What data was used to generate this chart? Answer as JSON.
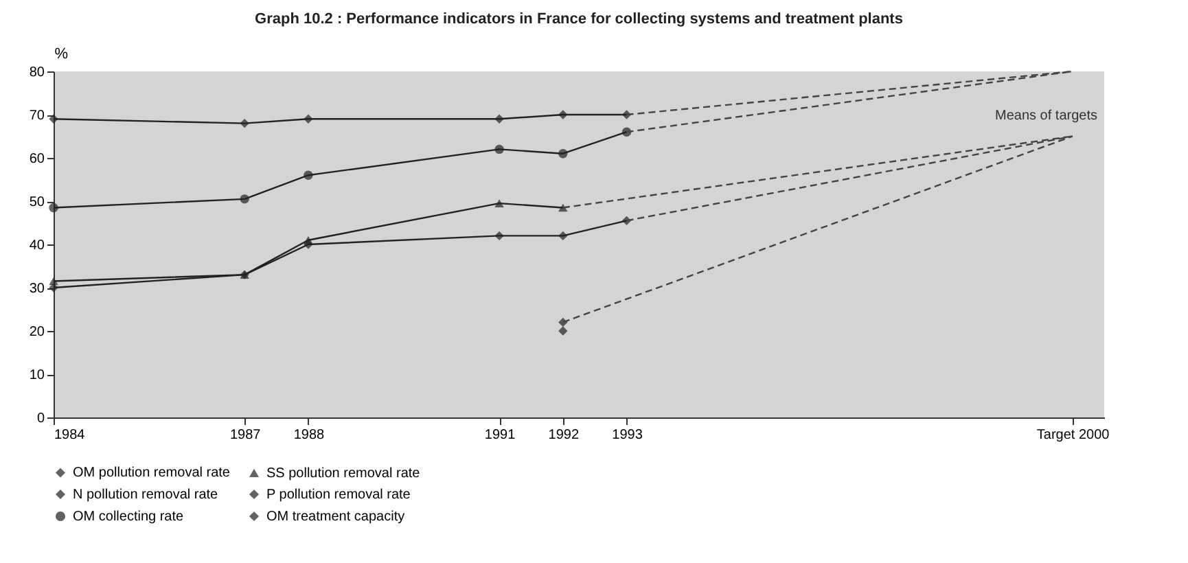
{
  "chart_data": {
    "type": "line",
    "title": "Graph 10.2 : Performance indicators in France for collecting systems and treatment plants",
    "ylabel": "%",
    "xlim": [
      1984,
      2000.5
    ],
    "xticks": [
      1984,
      1987,
      1988,
      1991,
      1992,
      1993,
      {
        "value": 2000,
        "label": "Target 2000"
      }
    ],
    "ylim": [
      0,
      80
    ],
    "yticks": [
      0,
      10,
      20,
      30,
      40,
      50,
      60,
      70,
      80
    ],
    "grid": false,
    "legend": "bottom",
    "marker": "diamond",
    "series": [
      {
        "name": "OM pollution removal rate",
        "color": "#222222",
        "x": [
          1984,
          1987,
          1988,
          1991,
          1992,
          1993
        ],
        "values": [
          30,
          33,
          40,
          42,
          42,
          45.5
        ]
      },
      {
        "name": "SS pollution removal rate",
        "color": "#222222",
        "marker": "triangle",
        "x": [
          1984,
          1987,
          1988,
          1991,
          1992
        ],
        "values": [
          31.5,
          33,
          41,
          49.5,
          48.5
        ]
      },
      {
        "name": "N pollution removal rate",
        "color": "#222222",
        "x": [
          1992
        ],
        "values": [
          22
        ]
      },
      {
        "name": "P pollution removal rate",
        "color": "#222222",
        "x": [
          1992
        ],
        "values": [
          20
        ]
      },
      {
        "name": "OM collecting rate",
        "color": "#222222",
        "marker": "circle",
        "x": [
          1984,
          1987,
          1988,
          1991,
          1992,
          1993
        ],
        "values": [
          48.5,
          50.5,
          56,
          62,
          61,
          66
        ]
      },
      {
        "name": "OM treatment capacity",
        "color": "#222222",
        "x": [
          1984,
          1987,
          1988,
          1991,
          1992,
          1993
        ],
        "values": [
          69,
          68,
          69,
          69,
          70,
          70
        ]
      },
      {
        "color": "#444444",
        "line_style": "dashed",
        "marker": "none",
        "x": [
          1993,
          2000
        ],
        "values": [
          70,
          80
        ]
      },
      {
        "color": "#444444",
        "line_style": "dashed",
        "marker": "none",
        "x": [
          1993,
          2000
        ],
        "values": [
          66,
          80
        ]
      },
      {
        "color": "#444444",
        "line_style": "dashed",
        "marker": "none",
        "x": [
          1992,
          2000
        ],
        "values": [
          48.5,
          65
        ]
      },
      {
        "color": "#444444",
        "line_style": "dashed",
        "marker": "none",
        "x": [
          1993,
          2000
        ],
        "values": [
          45.5,
          65
        ]
      },
      {
        "color": "#444444",
        "line_style": "dashed",
        "marker": "none",
        "x": [
          1992,
          2000
        ],
        "values": [
          22,
          65
        ]
      }
    ],
    "annotations": [
      "Means of targets"
    ]
  }
}
